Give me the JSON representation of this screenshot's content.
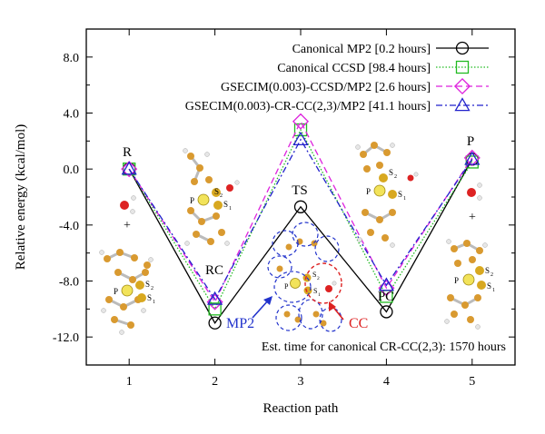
{
  "chart_data": {
    "type": "line",
    "xlabel": "Reaction path",
    "ylabel": "Relative energy (kcal/mol)",
    "x": [
      1,
      2,
      3,
      4,
      5
    ],
    "xticks": [
      "1",
      "2",
      "3",
      "4",
      "5"
    ],
    "yticks": [
      "8.0",
      "4.0",
      "0.0",
      "-4.0",
      "-8.0",
      "-12.0"
    ],
    "ytick_values": [
      8,
      4,
      0,
      -4,
      -8,
      -12
    ],
    "xlim": [
      0.5,
      5.5
    ],
    "ylim": [
      -14,
      10
    ],
    "grid": false,
    "legend_position": "top-right",
    "series": [
      {
        "name": "Canonical MP2 [0.2 hours]",
        "values": [
          0.0,
          -11.0,
          -2.7,
          -10.2,
          0.7
        ],
        "color": "#000000",
        "dash": "",
        "marker": "circle"
      },
      {
        "name": "Canonical CCSD [98.4 hours]",
        "values": [
          0.0,
          -10.0,
          2.8,
          -9.1,
          0.5
        ],
        "color": "#22bb22",
        "dash": "1.5,2",
        "marker": "square"
      },
      {
        "name": "GSECIM(0.003)-CCSD/MP2 [2.6 hours]",
        "values": [
          0.0,
          -9.5,
          3.4,
          -8.5,
          0.8
        ],
        "color": "#dd22dd",
        "dash": "7,4",
        "marker": "diamond"
      },
      {
        "name": "GSECIM(0.003)-CR-CC(2,3)/MP2 [41.1 hours]",
        "values": [
          0.0,
          -9.3,
          2.1,
          -8.3,
          0.7
        ],
        "color": "#2222cc",
        "dash": "7,3,2,3",
        "marker": "triangle"
      }
    ],
    "annotations": {
      "point_labels": [
        "R",
        "RC",
        "TS",
        "PC",
        "P"
      ],
      "plus": [
        "+",
        "+"
      ],
      "mp2": "MP2",
      "cc": "CC",
      "sub_s2": "2",
      "sub_s1": "1",
      "est_time": "Est. time for canonical CR-CC(2,3): 1570 hours"
    }
  }
}
